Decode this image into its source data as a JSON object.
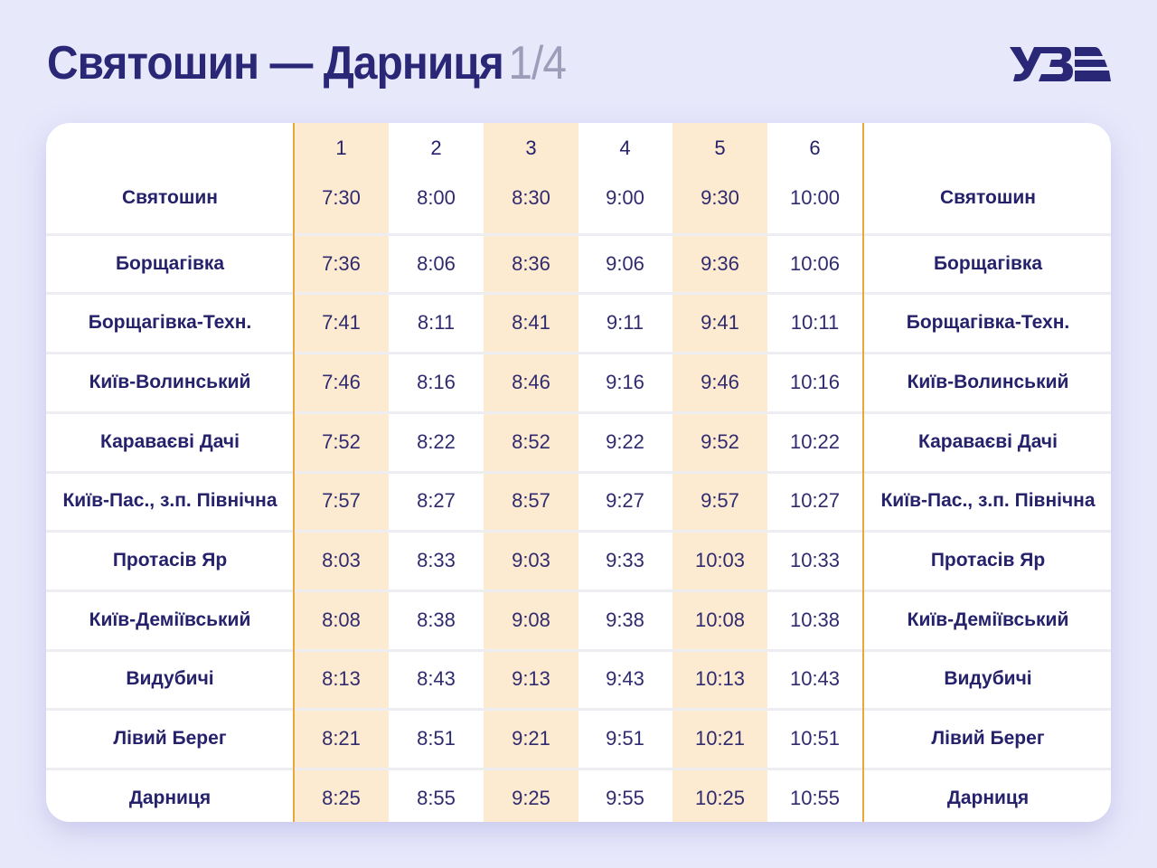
{
  "header": {
    "title": "Святошин — Дарниця",
    "page": "1/4",
    "logo": "УЗ"
  },
  "colors": {
    "background": "#e8e8fb",
    "title": "#2a2777",
    "accent_line": "#e8a93a",
    "highlight_column": "#fdebd1",
    "text": "#25216b"
  },
  "table": {
    "train_numbers": [
      "1",
      "2",
      "3",
      "4",
      "5",
      "6"
    ],
    "rows": [
      {
        "station": "Святошин",
        "times": [
          "7:30",
          "8:00",
          "8:30",
          "9:00",
          "9:30",
          "10:00"
        ]
      },
      {
        "station": "Борщагівка",
        "times": [
          "7:36",
          "8:06",
          "8:36",
          "9:06",
          "9:36",
          "10:06"
        ]
      },
      {
        "station": "Борщагівка-Техн.",
        "times": [
          "7:41",
          "8:11",
          "8:41",
          "9:11",
          "9:41",
          "10:11"
        ]
      },
      {
        "station": "Київ-Волинський",
        "times": [
          "7:46",
          "8:16",
          "8:46",
          "9:16",
          "9:46",
          "10:16"
        ]
      },
      {
        "station": "Караваєві Дачі",
        "times": [
          "7:52",
          "8:22",
          "8:52",
          "9:22",
          "9:52",
          "10:22"
        ]
      },
      {
        "station": "Київ-Пас., з.п. Північна",
        "times": [
          "7:57",
          "8:27",
          "8:57",
          "9:27",
          "9:57",
          "10:27"
        ]
      },
      {
        "station": "Протасів Яр",
        "times": [
          "8:03",
          "8:33",
          "9:03",
          "9:33",
          "10:03",
          "10:33"
        ]
      },
      {
        "station": "Київ-Деміївський",
        "times": [
          "8:08",
          "8:38",
          "9:08",
          "9:38",
          "10:08",
          "10:38"
        ]
      },
      {
        "station": "Видубичі",
        "times": [
          "8:13",
          "8:43",
          "9:13",
          "9:43",
          "10:13",
          "10:43"
        ]
      },
      {
        "station": "Лівий Берег",
        "times": [
          "8:21",
          "8:51",
          "9:21",
          "9:51",
          "10:21",
          "10:51"
        ]
      },
      {
        "station": "Дарниця",
        "times": [
          "8:25",
          "8:55",
          "9:25",
          "9:55",
          "10:25",
          "10:55"
        ]
      }
    ]
  }
}
